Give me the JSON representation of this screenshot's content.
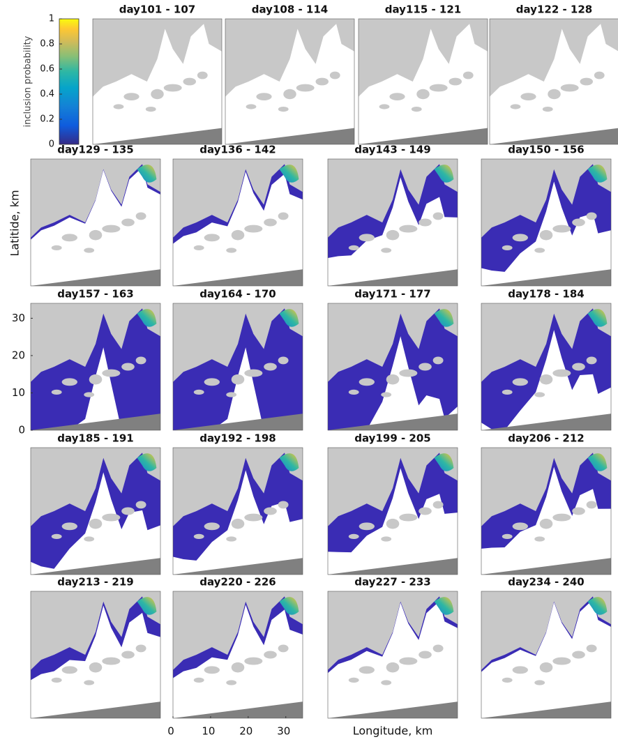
{
  "colorbar": {
    "label": "inclusion probability",
    "ticks": [
      0,
      0.2,
      0.4,
      0.6,
      0.8,
      1
    ],
    "lim": [
      0,
      1
    ]
  },
  "panels": [
    "day101 - 107",
    "day108 - 114",
    "day115 - 121",
    "day122 - 128",
    "day129 - 135",
    "day136 - 142",
    "day143 - 149",
    "day150 - 156",
    "day157 - 163",
    "day164 - 170",
    "day171 - 177",
    "day178 - 184",
    "day185 - 191",
    "day192 - 198",
    "day199 - 205",
    "day206 - 212",
    "day213 - 219",
    "day220 - 226",
    "day227 - 233",
    "day234 - 240"
  ],
  "axes": {
    "ylabel": "Latitide, km",
    "xlabel": "Longitude, km",
    "yticks": [
      0,
      10,
      20,
      30
    ],
    "xticks": [
      0,
      10,
      20,
      30
    ],
    "ylim": [
      0,
      34
    ],
    "xlim": [
      0,
      34.5
    ]
  }
}
